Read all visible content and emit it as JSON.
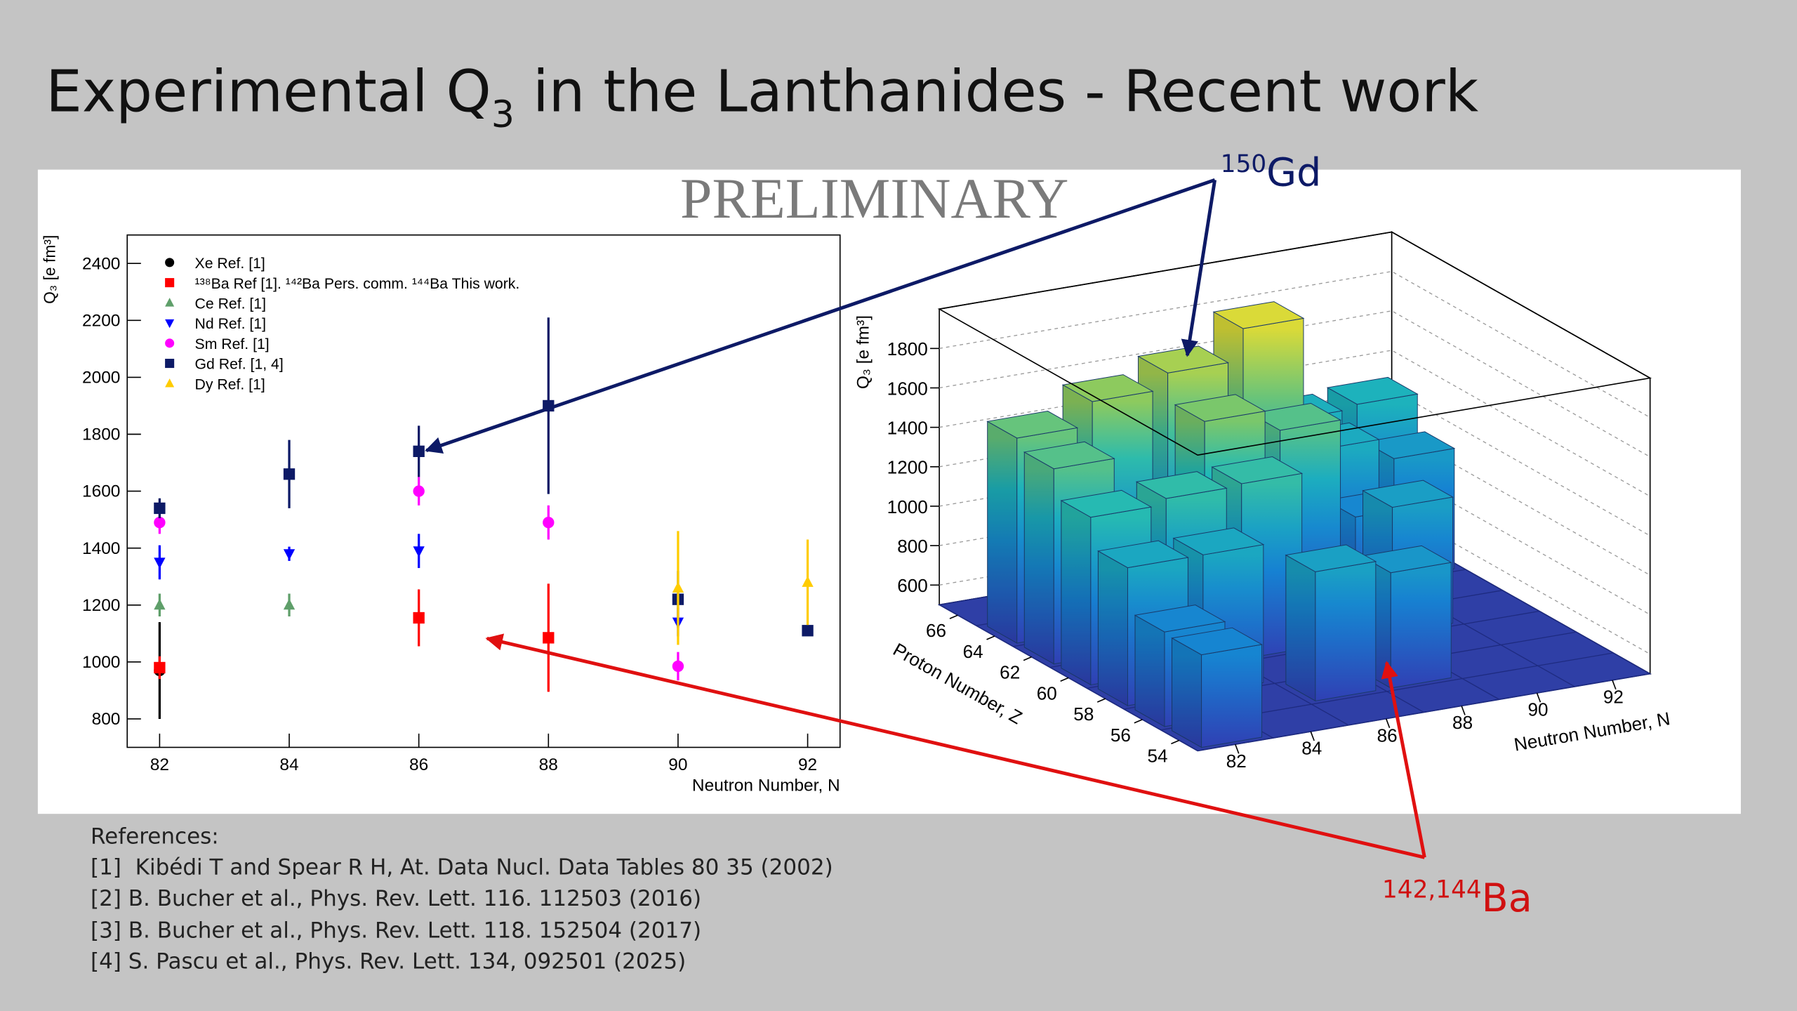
{
  "slide": {
    "title": {
      "main": "Experimental Q",
      "sub": "3",
      "rest": " in the Lanthanides - Recent work"
    },
    "stamp": "PRELIMINARY",
    "annotations": [
      {
        "sup": "150",
        "text": "Gd"
      },
      {
        "sup": "142,144",
        "text": "Ba"
      }
    ],
    "references": {
      "heading": "References:",
      "items": [
        "[1]  Kibédi T and Spear R H, At. Data Nucl. Data Tables 80 35 (2002)",
        "[2] B. Bucher et al., Phys. Rev. Lett. 116. 112503 (2016)",
        "[3] B. Bucher et al., Phys. Rev. Lett. 118. 152504 (2017)",
        "[4] S. Pascu et al., Phys. Rev. Lett. 134, 092501 (2025)"
      ]
    }
  },
  "chart_data": [
    {
      "type": "scatter",
      "xlabel": "Neutron Number, N",
      "ylabel": "Q₃ [e fm³]",
      "xlim": [
        81.5,
        92.5
      ],
      "ylim": [
        700,
        2500
      ],
      "xticks": [
        82,
        84,
        86,
        88,
        90,
        92
      ],
      "yticks": [
        800,
        1000,
        1200,
        1400,
        1600,
        1800,
        2000,
        2200,
        2400
      ],
      "series": [
        {
          "name": "Xe Ref. [1]",
          "color": "#000000",
          "marker": "circle",
          "x": [
            82
          ],
          "values": [
            970
          ],
          "errors": [
            170
          ]
        },
        {
          "name": "¹³⁸Ba Ref [1]. ¹⁴²Ba Pers. comm. ¹⁴⁴Ba This work.",
          "color": "#ff0000",
          "marker": "square",
          "x": [
            82,
            86,
            88
          ],
          "values": [
            980,
            1155,
            1085
          ],
          "errors": [
            40,
            100,
            190
          ]
        },
        {
          "name": "Ce Ref. [1]",
          "color": "#5f9f6a",
          "marker": "triangle-up",
          "x": [
            82,
            84
          ],
          "values": [
            1200,
            1200
          ],
          "errors": [
            40,
            40
          ]
        },
        {
          "name": "Nd Ref. [1]",
          "color": "#0000ff",
          "marker": "triangle-down",
          "x": [
            82,
            84,
            86,
            90
          ],
          "values": [
            1350,
            1380,
            1390,
            1140
          ],
          "errors": [
            60,
            25,
            60,
            50
          ]
        },
        {
          "name": "Sm Ref. [1]",
          "color": "#ff00ff",
          "marker": "circle",
          "x": [
            82,
            86,
            88,
            90
          ],
          "values": [
            1490,
            1600,
            1490,
            985
          ],
          "errors": [
            40,
            50,
            60,
            50
          ]
        },
        {
          "name": "Gd Ref. [1, 4]",
          "color": "#0d1a66",
          "marker": "square",
          "x": [
            82,
            84,
            86,
            88,
            90,
            92
          ],
          "values": [
            1540,
            1660,
            1740,
            1900,
            1220,
            1110
          ],
          "errors": [
            35,
            120,
            90,
            310,
            100,
            15
          ]
        },
        {
          "name": "Dy Ref. [1]",
          "color": "#ffcc00",
          "marker": "triangle-up",
          "x": [
            90,
            92
          ],
          "values": [
            1260,
            1280
          ],
          "errors": [
            200,
            150
          ]
        }
      ]
    },
    {
      "type": "bar3d",
      "xlabel": "Neutron Number, N",
      "ylabel": "Proton Number, Z",
      "zlabel": "Q₃ [e fm³]",
      "xlim": [
        81,
        93
      ],
      "ylim": [
        53,
        67
      ],
      "zlim": [
        500,
        2000
      ],
      "xticks": [
        82,
        84,
        86,
        88,
        90,
        92
      ],
      "yticks": [
        54,
        56,
        58,
        60,
        62,
        64,
        66
      ],
      "zticks": [
        600,
        800,
        1000,
        1200,
        1400,
        1600,
        1800
      ],
      "x": [
        82,
        82,
        86,
        88,
        82,
        84,
        82,
        84,
        86,
        90,
        82,
        86,
        88,
        90,
        82,
        84,
        86,
        88,
        90,
        92,
        90,
        92
      ],
      "y": [
        54,
        56,
        56,
        56,
        58,
        58,
        60,
        60,
        60,
        60,
        62,
        62,
        62,
        62,
        64,
        64,
        64,
        64,
        64,
        64,
        66,
        66
      ],
      "values": [
        970,
        980,
        1155,
        1085,
        1200,
        1200,
        1350,
        1380,
        1390,
        1140,
        1490,
        1600,
        1490,
        985,
        1540,
        1660,
        1740,
        1900,
        1220,
        1110,
        1260,
        1280
      ]
    }
  ]
}
